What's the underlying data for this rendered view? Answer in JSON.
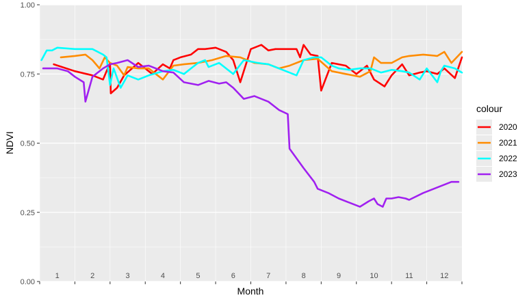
{
  "chart_data": {
    "type": "line",
    "xlabel": "Month",
    "ylabel": "NDVI",
    "ylim": [
      0,
      1
    ],
    "xlim": [
      0.5,
      12.5
    ],
    "y_ticks": [
      "0.00",
      "0.25",
      "0.50",
      "0.75",
      "1.00"
    ],
    "y_tick_values": [
      0,
      0.25,
      0.5,
      0.75,
      1.0
    ],
    "x_ticks": [
      "1",
      "2",
      "3",
      "4",
      "5",
      "6",
      "7",
      "8",
      "9",
      "10",
      "11",
      "12"
    ],
    "x_tick_values": [
      1,
      2,
      3,
      4,
      5,
      6,
      7,
      8,
      9,
      10,
      11,
      12
    ],
    "grid": true,
    "legend_title": "colour",
    "legend_position": "right",
    "series": [
      {
        "name": "2020",
        "color": "#ff0000",
        "x": [
          0.9,
          1.5,
          2.0,
          2.3,
          2.5,
          2.52,
          2.7,
          2.9,
          3.3,
          3.7,
          4.0,
          4.2,
          4.3,
          4.5,
          4.8,
          5.0,
          5.2,
          5.5,
          5.8,
          6.0,
          6.2,
          6.3,
          6.5,
          6.8,
          7.0,
          7.2,
          7.5,
          7.7,
          7.8,
          7.9,
          8.0,
          8.2,
          8.4,
          8.5,
          8.8,
          9.0,
          9.2,
          9.5,
          9.8,
          10.0,
          10.3,
          10.5,
          10.8,
          11.0,
          11.3,
          11.5,
          11.8,
          12.0,
          12.3,
          12.5
        ],
        "y": [
          0.785,
          0.76,
          0.745,
          0.73,
          0.79,
          0.68,
          0.7,
          0.745,
          0.79,
          0.75,
          0.785,
          0.77,
          0.8,
          0.81,
          0.82,
          0.84,
          0.84,
          0.845,
          0.83,
          0.8,
          0.72,
          0.76,
          0.84,
          0.855,
          0.835,
          0.84,
          0.84,
          0.84,
          0.84,
          0.81,
          0.855,
          0.82,
          0.815,
          0.69,
          0.79,
          0.785,
          0.78,
          0.75,
          0.78,
          0.73,
          0.705,
          0.745,
          0.785,
          0.745,
          0.755,
          0.76,
          0.75,
          0.77,
          0.735,
          0.81
        ]
      },
      {
        "name": "2021",
        "color": "#ff8c00",
        "x": [
          1.1,
          1.5,
          1.8,
          2.0,
          2.2,
          2.35,
          2.5,
          2.7,
          2.9,
          3.0,
          3.3,
          3.6,
          3.8,
          4.0,
          4.3,
          4.6,
          5.0,
          5.4,
          5.8,
          6.2,
          6.6,
          7.0,
          7.3,
          7.6,
          8.0,
          8.4,
          8.8,
          9.2,
          9.6,
          9.9,
          10.0,
          10.2,
          10.5,
          10.8,
          11.0,
          11.4,
          11.8,
          12.0,
          12.2,
          12.5
        ],
        "y": [
          0.81,
          0.815,
          0.82,
          0.8,
          0.77,
          0.81,
          0.79,
          0.78,
          0.745,
          0.775,
          0.77,
          0.77,
          0.75,
          0.73,
          0.78,
          0.785,
          0.79,
          0.8,
          0.815,
          0.81,
          0.79,
          0.785,
          0.77,
          0.78,
          0.8,
          0.805,
          0.76,
          0.75,
          0.74,
          0.76,
          0.81,
          0.79,
          0.79,
          0.81,
          0.815,
          0.82,
          0.815,
          0.83,
          0.79,
          0.83
        ]
      },
      {
        "name": "2022",
        "color": "#00ffff",
        "x": [
          0.55,
          0.7,
          0.85,
          1.0,
          1.5,
          2.0,
          2.3,
          2.4,
          2.5,
          2.6,
          2.8,
          3.0,
          3.3,
          3.6,
          4.0,
          4.3,
          4.6,
          4.8,
          5.0,
          5.2,
          5.3,
          5.6,
          6.0,
          6.3,
          6.7,
          7.0,
          7.5,
          7.8,
          8.0,
          8.3,
          8.5,
          8.8,
          9.0,
          9.3,
          9.6,
          9.9,
          10.2,
          10.5,
          10.8,
          11.0,
          11.3,
          11.5,
          11.8,
          11.9,
          12.0,
          12.3,
          12.5
        ],
        "y": [
          0.8,
          0.835,
          0.835,
          0.845,
          0.84,
          0.84,
          0.82,
          0.81,
          0.71,
          0.77,
          0.7,
          0.745,
          0.73,
          0.745,
          0.76,
          0.765,
          0.75,
          0.77,
          0.79,
          0.8,
          0.775,
          0.79,
          0.75,
          0.8,
          0.79,
          0.785,
          0.76,
          0.745,
          0.8,
          0.81,
          0.81,
          0.78,
          0.77,
          0.765,
          0.77,
          0.77,
          0.755,
          0.765,
          0.76,
          0.755,
          0.73,
          0.77,
          0.72,
          0.76,
          0.78,
          0.77,
          0.755
        ]
      },
      {
        "name": "2023",
        "color": "#a020f0",
        "x": [
          0.6,
          1.0,
          1.3,
          1.5,
          1.75,
          1.8,
          2.0,
          2.3,
          2.5,
          2.7,
          3.0,
          3.3,
          3.6,
          4.0,
          4.3,
          4.6,
          5.0,
          5.3,
          5.6,
          5.8,
          6.0,
          6.3,
          6.6,
          7.0,
          7.3,
          7.55,
          7.6,
          8.0,
          8.3,
          8.4,
          8.7,
          9.0,
          9.3,
          9.6,
          9.85,
          10.0,
          10.1,
          10.25,
          10.35,
          10.5,
          10.7,
          10.9,
          11.0,
          11.4,
          11.8,
          12.2,
          12.4
        ],
        "y": [
          0.77,
          0.77,
          0.76,
          0.74,
          0.72,
          0.65,
          0.74,
          0.77,
          0.785,
          0.79,
          0.8,
          0.775,
          0.78,
          0.76,
          0.755,
          0.72,
          0.71,
          0.725,
          0.715,
          0.72,
          0.7,
          0.66,
          0.67,
          0.65,
          0.62,
          0.605,
          0.48,
          0.41,
          0.36,
          0.335,
          0.32,
          0.3,
          0.285,
          0.27,
          0.29,
          0.3,
          0.28,
          0.27,
          0.3,
          0.3,
          0.305,
          0.3,
          0.295,
          0.32,
          0.34,
          0.36,
          0.36
        ]
      }
    ]
  }
}
